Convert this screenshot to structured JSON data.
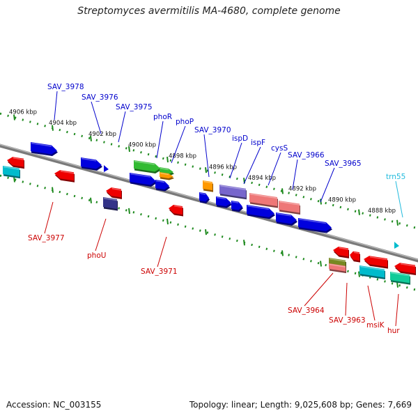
{
  "title": "Streptomyces avermitilis MA-4680, complete genome",
  "footer": {
    "accession": "Accession: NC_003155",
    "stats": "Topology: linear; Length: 9,025,608 bp; Genes: 7,669"
  },
  "colors": {
    "backbone": "#7a7a7a",
    "tick": "#1e8a1e",
    "label_top": "#0000cc",
    "label_bottom": "#cc0000",
    "label_rna": "#22bbdd",
    "blue": "#0000dd",
    "red": "#ee0000",
    "cyan": "#00bbcc",
    "green": "#33bb33",
    "orange": "#ff9900",
    "navy": "#333388",
    "lavender": "#7766cc",
    "salmon": "#ee7777",
    "olive": "#778822",
    "teal": "#11cc99"
  },
  "kbp_labels": [
    "4906 kbp",
    "4904 kbp",
    "4902 kbp",
    "4900 kbp",
    "4898 kbp",
    "4896 kbp",
    "4894 kbp",
    "4892 kbp",
    "4890 kbp",
    "4888 kbp"
  ],
  "top_labels": [
    "SAV_3978",
    "SAV_3976",
    "SAV_3975",
    "phoR",
    "phoP",
    "SAV_3970",
    "ispD",
    "ispF",
    "cysS",
    "SAV_3966",
    "SAV_3965",
    "trn55"
  ],
  "bottom_labels": [
    "SAV_3977",
    "phoU",
    "SAV_3971",
    "SAV_3964",
    "SAV_3963",
    "msiK",
    "hur"
  ]
}
